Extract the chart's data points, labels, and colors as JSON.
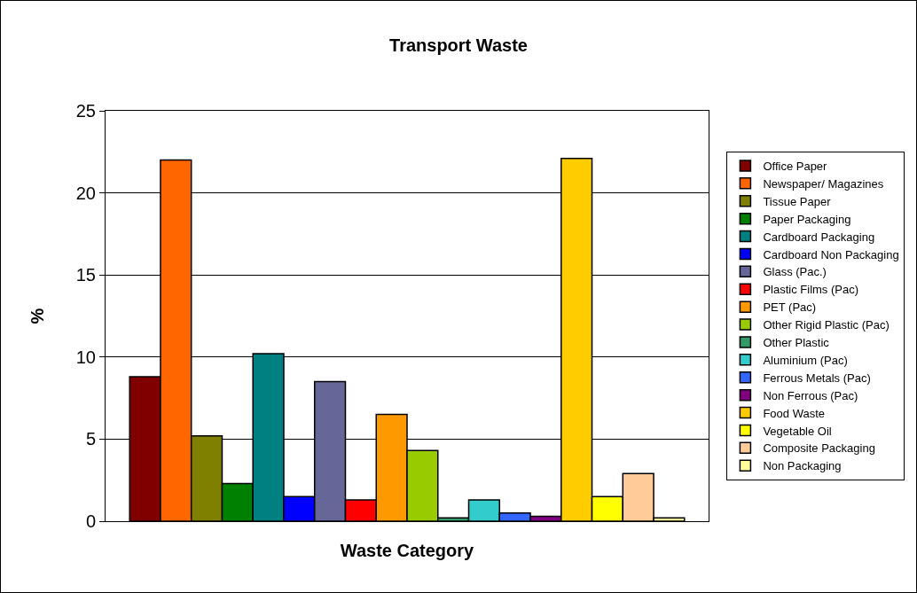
{
  "chart_data": {
    "type": "bar",
    "title": "Transport Waste",
    "xlabel": "Waste Category",
    "ylabel": "%",
    "categories": [
      null
    ],
    "series": [
      {
        "name": "Office Paper",
        "color": "#800000",
        "values": [
          8.8
        ]
      },
      {
        "name": "Newspaper/ Magazines",
        "color": "#ff6600",
        "values": [
          22.0
        ]
      },
      {
        "name": "Tissue Paper",
        "color": "#808000",
        "values": [
          5.2
        ]
      },
      {
        "name": "Paper Packaging",
        "color": "#008000",
        "values": [
          2.3
        ]
      },
      {
        "name": "Cardboard Packaging",
        "color": "#008080",
        "values": [
          10.2
        ]
      },
      {
        "name": "Cardboard Non Packaging",
        "color": "#0000ff",
        "values": [
          1.5
        ]
      },
      {
        "name": "Glass (Pac.)",
        "color": "#666699",
        "values": [
          8.5
        ]
      },
      {
        "name": "Plastic Films (Pac)",
        "color": "#ff0000",
        "values": [
          1.3
        ]
      },
      {
        "name": "PET (Pac)",
        "color": "#ff9900",
        "values": [
          6.5
        ]
      },
      {
        "name": "Other Rigid Plastic (Pac)",
        "color": "#99cc00",
        "values": [
          4.3
        ]
      },
      {
        "name": "Other Plastic",
        "color": "#339966",
        "values": [
          0.2
        ]
      },
      {
        "name": "Aluminium (Pac)",
        "color": "#33cccc",
        "values": [
          1.3
        ]
      },
      {
        "name": "Ferrous Metals (Pac)",
        "color": "#3366ff",
        "values": [
          0.5
        ]
      },
      {
        "name": "Non Ferrous (Pac)",
        "color": "#800080",
        "values": [
          0.3
        ]
      },
      {
        "name": "Food Waste",
        "color": "#ffcc00",
        "values": [
          22.1
        ]
      },
      {
        "name": "Vegetable Oil",
        "color": "#ffff00",
        "values": [
          1.5
        ]
      },
      {
        "name": "Composite Packaging",
        "color": "#ffcc99",
        "values": [
          2.9
        ]
      },
      {
        "name": "Non Packaging",
        "color": "#ffff99",
        "values": [
          0.2
        ]
      }
    ],
    "ylim": [
      0,
      25
    ],
    "yticks": [
      0,
      5,
      10,
      15,
      20,
      25
    ],
    "grid": "y",
    "legend": "right",
    "tick_labels": "y"
  }
}
